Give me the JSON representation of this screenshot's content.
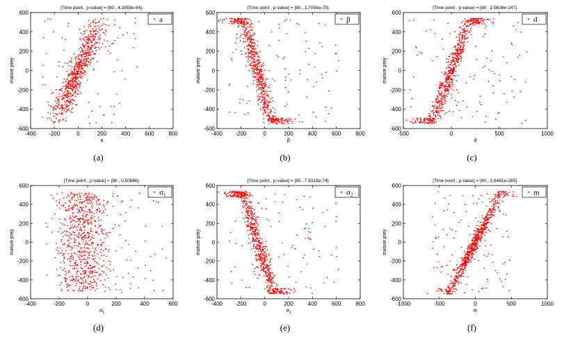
{
  "chart_data": [
    {
      "type": "scatter",
      "title": "[Time point , p-value] = [80 , 4.3859e-64].",
      "xlabel": "a",
      "xlabel_sub": "",
      "ylabel": "mature prey",
      "legend": "a",
      "legend_sub": "",
      "caption": "(a)",
      "xlim": [
        -400,
        800
      ],
      "xticks": [
        -400,
        -200,
        0,
        200,
        400,
        600,
        800
      ],
      "ylim": [
        -600,
        600
      ],
      "yticks": [
        -600,
        -400,
        -200,
        0,
        200,
        400,
        600
      ],
      "pattern": {
        "kind": "sigmoid",
        "center": 0,
        "spread": 100,
        "noise": 110,
        "out_xmin": -300,
        "out_xmax": 500
      },
      "n_points": 800,
      "seed": 11
    },
    {
      "type": "scatter",
      "title": "[Time point , p-value] = [80 , 1.7056e-75].",
      "xlabel": "β",
      "xlabel_sub": "",
      "ylabel": "mature prey",
      "legend": "β",
      "legend_sub": "",
      "caption": "(b)",
      "xlim": [
        -400,
        800
      ],
      "xticks": [
        -400,
        -200,
        0,
        200,
        400,
        600,
        800
      ],
      "ylim": [
        -600,
        600
      ],
      "yticks": [
        -600,
        -400,
        -200,
        0,
        200,
        400,
        600
      ],
      "pattern": {
        "kind": "linear",
        "center": -60,
        "slope": -4.2,
        "spread": 110,
        "noise": 120,
        "out_xmin": -300,
        "out_xmax": 620
      },
      "n_points": 800,
      "seed": 23
    },
    {
      "type": "scatter",
      "title": "[Time point , p-value] = [80 , 2.5638e-147].",
      "xlabel": "d",
      "xlabel_sub": "",
      "ylabel": "mature prey",
      "legend": "d",
      "legend_sub": "",
      "caption": "(c)",
      "xlim": [
        -500,
        1000
      ],
      "xticks": [
        -500,
        0,
        500,
        1000
      ],
      "ylim": [
        -600,
        600
      ],
      "yticks": [
        -600,
        -400,
        -200,
        0,
        200,
        400,
        600
      ],
      "pattern": {
        "kind": "linear",
        "center": 0,
        "slope": 2.6,
        "spread": 160,
        "noise": 90,
        "out_xmin": -450,
        "out_xmax": 800
      },
      "n_points": 800,
      "seed": 37
    },
    {
      "type": "scatter",
      "title": "[Time point , p-value] = [80 , 0.50866].",
      "xlabel": "σ",
      "xlabel_sub": "1",
      "ylabel": "mature prey",
      "legend": "σ",
      "legend_sub": "1",
      "caption": "(d)",
      "xlim": [
        -400,
        600
      ],
      "xticks": [
        -400,
        -200,
        0,
        200,
        400,
        600
      ],
      "ylim": [
        -600,
        600
      ],
      "yticks": [
        -600,
        -400,
        -200,
        0,
        200,
        400,
        600
      ],
      "pattern": {
        "kind": "none",
        "center": -30,
        "spread": 90,
        "noise": 0,
        "out_xmin": -250,
        "out_xmax": 560
      },
      "n_points": 800,
      "seed": 41
    },
    {
      "type": "scatter",
      "title": "[Time point , p-value] = [80 , 7.8318e-74].",
      "xlabel": "σ",
      "xlabel_sub": "2",
      "ylabel": "mature prey",
      "legend": "σ",
      "legend_sub": "2",
      "caption": "(e)",
      "xlim": [
        -400,
        800
      ],
      "xticks": [
        -400,
        -200,
        0,
        200,
        400,
        600,
        800
      ],
      "ylim": [
        -600,
        600
      ],
      "yticks": [
        -600,
        -400,
        -200,
        0,
        200,
        400,
        600
      ],
      "pattern": {
        "kind": "linear",
        "center": -60,
        "slope": -4.0,
        "spread": 110,
        "noise": 120,
        "out_xmin": -300,
        "out_xmax": 620
      },
      "n_points": 800,
      "seed": 53
    },
    {
      "type": "scatter",
      "title": "[Time point , p-value] = [80 , 2.6481e-285].",
      "xlabel": "m",
      "xlabel_sub": "",
      "ylabel": "mature prey",
      "legend": "m",
      "legend_sub": "",
      "caption": "(f)",
      "xlim": [
        -1000,
        1000
      ],
      "xticks": [
        -1000,
        -500,
        0,
        500,
        1000
      ],
      "ylim": [
        -600,
        600
      ],
      "yticks": [
        -600,
        -400,
        -200,
        0,
        200,
        400,
        600
      ],
      "pattern": {
        "kind": "linear",
        "center": 0,
        "slope": 1.45,
        "spread": 200,
        "noise": 55,
        "out_xmin": -600,
        "out_xmax": 500
      },
      "n_points": 800,
      "seed": 67
    }
  ],
  "style": {
    "point_color": "#ff0000",
    "axis_color": "#000000",
    "background": "#ffffff"
  }
}
